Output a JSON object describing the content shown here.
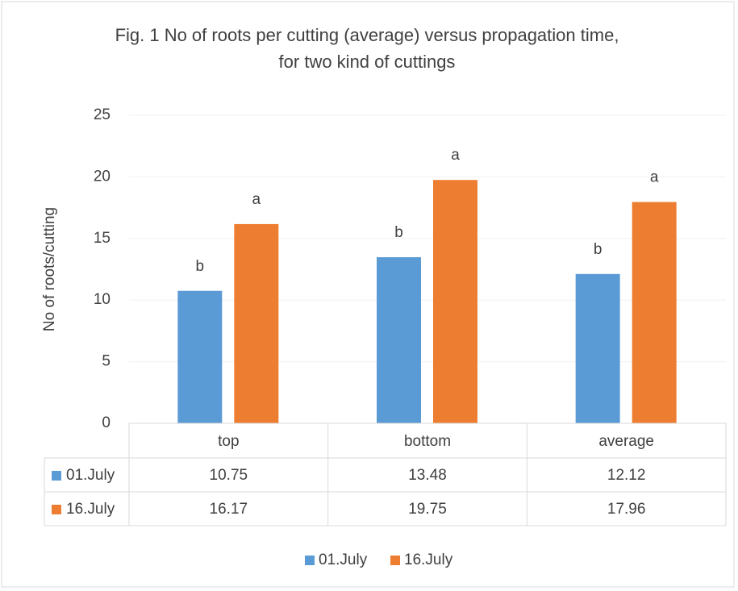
{
  "chart_data": {
    "type": "bar",
    "title": [
      "Fig. 1 No of roots per cutting (average) versus propagation time,",
      "for two kind of cuttings"
    ],
    "y_label": "No of roots/cutting",
    "categories": [
      "top",
      "bottom",
      "average"
    ],
    "series": [
      {
        "name": "01.July",
        "color": "#5b9bd5",
        "values": [
          10.75,
          13.48,
          12.12
        ],
        "letters": [
          "b",
          "b",
          "b"
        ]
      },
      {
        "name": "16.July",
        "color": "#ed7d31",
        "values": [
          16.17,
          19.75,
          17.96
        ],
        "letters": [
          "a",
          "a",
          "a"
        ]
      }
    ],
    "ylim": [
      0,
      25
    ],
    "yticks": [
      0,
      5,
      10,
      15,
      20,
      25
    ],
    "grid": true,
    "legend": "bottom",
    "data_table": true
  }
}
